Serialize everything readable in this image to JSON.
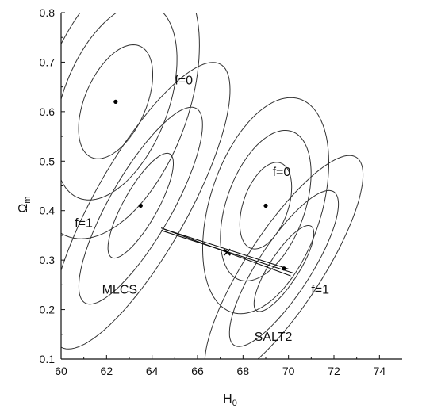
{
  "chart_data": {
    "type": "scatter",
    "title": "",
    "xlabel": "H",
    "xlabel_sub": "0",
    "ylabel": "Ω",
    "ylabel_sub": "m",
    "xlim": [
      60,
      75
    ],
    "ylim": [
      0.1,
      0.8
    ],
    "xticks": [
      60,
      62,
      64,
      66,
      68,
      70,
      72,
      74
    ],
    "yticks": [
      0.1,
      0.2,
      0.3,
      0.4,
      0.5,
      0.6,
      0.7,
      0.8
    ],
    "grid": false,
    "line_color": "#333333",
    "confidence_regions": [
      {
        "center": [
          62.4,
          0.62
        ],
        "levels": [
          {
            "semi_major": 0.096,
            "semi_minor": 0.2,
            "angle": -1.2
          },
          {
            "semi_major": 0.17,
            "semi_minor": 0.33,
            "angle": -1.2
          },
          {
            "semi_major": 0.24,
            "semi_minor": 0.45,
            "angle": -1.2
          }
        ]
      },
      {
        "center": [
          63.5,
          0.41
        ],
        "levels": [
          {
            "semi_major": 0.055,
            "semi_minor": 0.19,
            "angle": -1.05
          },
          {
            "semi_major": 0.1,
            "semi_minor": 0.36,
            "angle": -1.05
          },
          {
            "semi_major": 0.15,
            "semi_minor": 0.52,
            "angle": -1.05
          }
        ]
      },
      {
        "center": [
          69.0,
          0.41
        ],
        "levels": [
          {
            "semi_major": 0.075,
            "semi_minor": 0.14,
            "angle": -1.18
          },
          {
            "semi_major": 0.13,
            "semi_minor": 0.245,
            "angle": -1.18
          },
          {
            "semi_major": 0.19,
            "semi_minor": 0.34,
            "angle": -1.18
          }
        ]
      },
      {
        "center": [
          69.8,
          0.283
        ],
        "levels": [
          {
            "semi_major": 0.045,
            "semi_minor": 0.17,
            "angle": -1.1
          },
          {
            "semi_major": 0.08,
            "semi_minor": 0.31,
            "angle": -1.1
          },
          {
            "semi_major": 0.115,
            "semi_minor": 0.45,
            "angle": -1.1
          }
        ]
      }
    ],
    "points": [
      {
        "x": 62.4,
        "y": 0.62
      },
      {
        "x": 63.5,
        "y": 0.41
      },
      {
        "x": 69.0,
        "y": 0.41
      },
      {
        "x": 69.8,
        "y": 0.283
      }
    ],
    "connecting_lines": [
      {
        "from": [
          64.4,
          0.365
        ],
        "to": [
          70.1,
          0.268
        ]
      },
      {
        "from": [
          64.4,
          0.36
        ],
        "to": [
          70.2,
          0.274
        ]
      },
      {
        "from": [
          64.5,
          0.363
        ],
        "to": [
          70.0,
          0.282
        ]
      }
    ],
    "cross_marker": {
      "x": 67.3,
      "y": 0.316
    },
    "annotations": [
      {
        "text": "f=0",
        "x": 65.0,
        "y": 0.655
      },
      {
        "text": "f=1",
        "x": 60.6,
        "y": 0.367
      },
      {
        "text": "MLCS",
        "x": 61.8,
        "y": 0.232
      },
      {
        "text": "f=0",
        "x": 69.3,
        "y": 0.47
      },
      {
        "text": "f=1",
        "x": 71.0,
        "y": 0.232
      },
      {
        "text": "SALT2",
        "x": 68.5,
        "y": 0.137
      }
    ]
  }
}
